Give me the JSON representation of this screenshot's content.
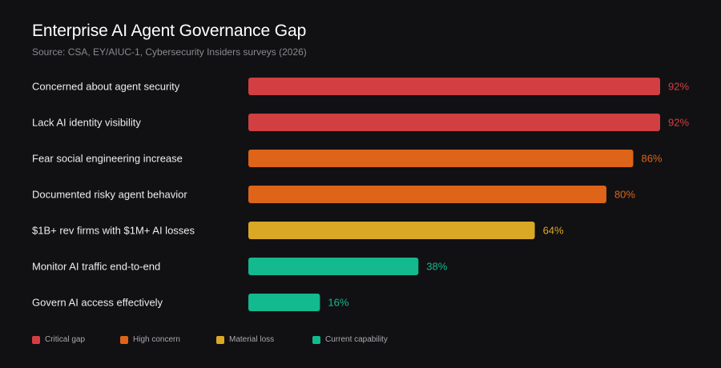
{
  "header": {
    "title": "Enterprise AI Agent Governance Gap",
    "subtitle": "Source: CSA, EY/AIUC-1, Cybersecurity Insiders surveys (2026)"
  },
  "colors": {
    "background": "#111113",
    "critical_gap": "#d13f42",
    "high_concern": "#dd6418",
    "material_loss": "#dba826",
    "current_capability": "#13b98f"
  },
  "chart_data": {
    "type": "bar",
    "orientation": "horizontal",
    "title": "Enterprise AI Agent Governance Gap",
    "subtitle": "Source: CSA, EY/AIUC-1, Cybersecurity Insiders surveys (2026)",
    "xlim": [
      0,
      100
    ],
    "value_suffix": "%",
    "grid": false,
    "legend_position": "bottom-left",
    "categories": [
      "Concerned about agent security",
      "Lack AI identity visibility",
      "Fear social engineering increase",
      "Documented risky agent behavior",
      "$1B+ rev firms with $1M+ AI losses",
      "Monitor AI traffic end-to-end",
      "Govern AI access effectively"
    ],
    "values": [
      92,
      92,
      86,
      80,
      64,
      38,
      16
    ],
    "value_labels": [
      "92%",
      "92%",
      "86%",
      "80%",
      "64%",
      "38%",
      "16%"
    ],
    "groups": [
      "Critical gap",
      "Critical gap",
      "High concern",
      "High concern",
      "Material loss",
      "Current capability",
      "Current capability"
    ]
  },
  "legend": {
    "items": [
      {
        "label": "Critical gap",
        "color": "#d13f42"
      },
      {
        "label": "High concern",
        "color": "#dd6418"
      },
      {
        "label": "Material loss",
        "color": "#dba826"
      },
      {
        "label": "Current capability",
        "color": "#13b98f"
      }
    ]
  }
}
